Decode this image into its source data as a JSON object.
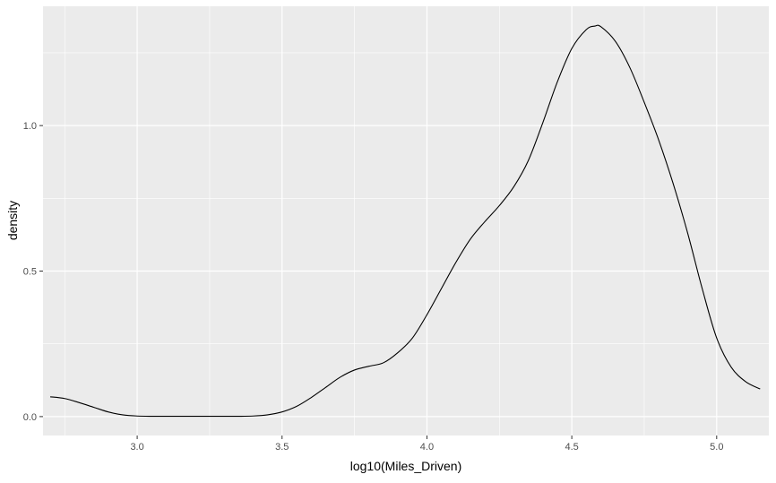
{
  "chart_data": {
    "type": "line",
    "title": "",
    "xlabel": "log10(Miles_Driven)",
    "ylabel": "density",
    "xlim": [
      2.675,
      5.18
    ],
    "ylim": [
      -0.065,
      1.41
    ],
    "x_ticks": [
      {
        "value": 3.0,
        "label": "3.0"
      },
      {
        "value": 3.5,
        "label": "3.5"
      },
      {
        "value": 4.0,
        "label": "4.0"
      },
      {
        "value": 4.5,
        "label": "4.5"
      },
      {
        "value": 5.0,
        "label": "5.0"
      }
    ],
    "y_ticks": [
      {
        "value": 0.0,
        "label": "0.0"
      },
      {
        "value": 0.5,
        "label": "0.5"
      },
      {
        "value": 1.0,
        "label": "1.0"
      }
    ],
    "grid": true,
    "panel_color": "#ebebeb",
    "grid_color": "#ffffff",
    "line_color": "#000000",
    "series": [
      {
        "x": [
          2.7,
          2.75,
          2.8,
          2.85,
          2.9,
          2.95,
          3.0,
          3.05,
          3.1,
          3.15,
          3.2,
          3.25,
          3.3,
          3.35,
          3.4,
          3.45,
          3.5,
          3.55,
          3.6,
          3.65,
          3.7,
          3.75,
          3.8,
          3.85,
          3.9,
          3.95,
          4.0,
          4.05,
          4.1,
          4.15,
          4.2,
          4.25,
          4.3,
          4.35,
          4.4,
          4.45,
          4.5,
          4.55,
          4.58,
          4.6,
          4.65,
          4.7,
          4.75,
          4.8,
          4.85,
          4.9,
          4.95,
          5.0,
          5.05,
          5.1,
          5.15
        ],
        "y": [
          0.068,
          0.062,
          0.048,
          0.032,
          0.016,
          0.006,
          0.002,
          0.001,
          0.001,
          0.001,
          0.001,
          0.001,
          0.001,
          0.001,
          0.002,
          0.006,
          0.016,
          0.035,
          0.065,
          0.1,
          0.135,
          0.16,
          0.173,
          0.185,
          0.22,
          0.27,
          0.35,
          0.44,
          0.53,
          0.61,
          0.67,
          0.725,
          0.79,
          0.88,
          1.01,
          1.15,
          1.265,
          1.33,
          1.342,
          1.34,
          1.29,
          1.2,
          1.08,
          0.95,
          0.8,
          0.63,
          0.44,
          0.27,
          0.17,
          0.12,
          0.095
        ]
      }
    ]
  }
}
